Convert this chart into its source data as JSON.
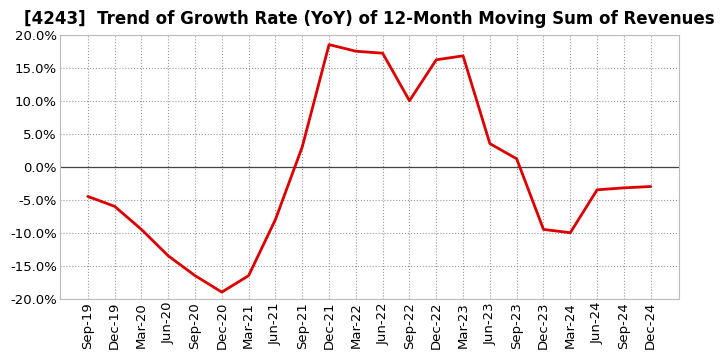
{
  "title": "[4243]  Trend of Growth Rate (YoY) of 12-Month Moving Sum of Revenues",
  "x_labels": [
    "Sep-19",
    "Dec-19",
    "Mar-20",
    "Jun-20",
    "Sep-20",
    "Dec-20",
    "Mar-21",
    "Jun-21",
    "Sep-21",
    "Dec-21",
    "Mar-22",
    "Jun-22",
    "Sep-22",
    "Dec-22",
    "Mar-23",
    "Jun-23",
    "Sep-23",
    "Dec-23",
    "Mar-24",
    "Jun-24",
    "Sep-24",
    "Dec-24"
  ],
  "y_values": [
    -4.5,
    -6.0,
    -9.5,
    -13.5,
    -16.5,
    -19.0,
    -16.5,
    -8.0,
    3.0,
    18.5,
    17.5,
    17.2,
    10.0,
    16.2,
    16.8,
    3.5,
    1.2,
    -9.5,
    -10.0,
    -3.5,
    -3.2,
    -3.0
  ],
  "ylim": [
    -20.0,
    20.0
  ],
  "yticks": [
    -20.0,
    -15.0,
    -10.0,
    -5.0,
    0.0,
    5.0,
    10.0,
    15.0,
    20.0
  ],
  "line_color": "#dd0000",
  "line_width": 2.0,
  "background_color": "#ffffff",
  "plot_bg_color": "#ffffff",
  "grid_color": "#999999",
  "zero_line_color": "#444444",
  "title_fontsize": 12,
  "tick_fontsize": 9.5
}
